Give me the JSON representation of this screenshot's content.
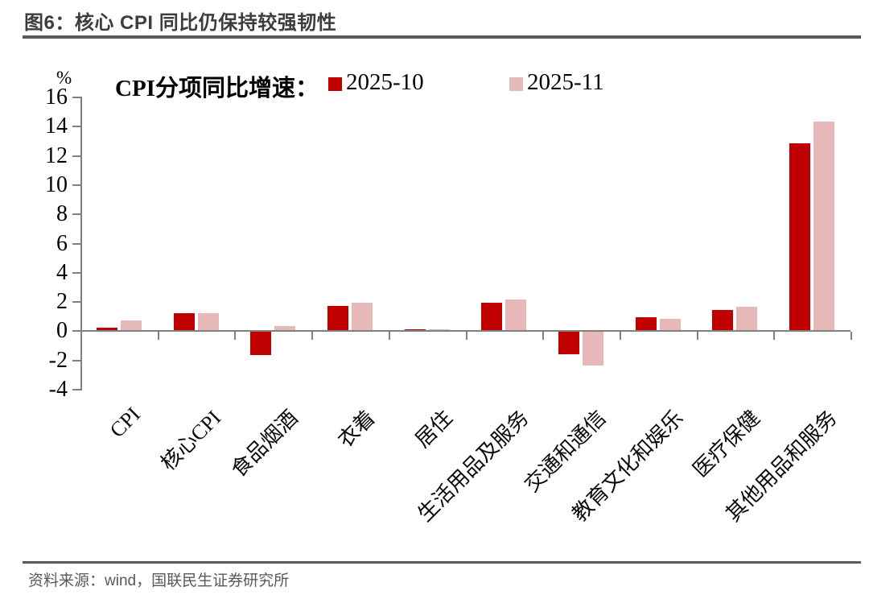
{
  "header": {
    "title": "图6：核心 CPI 同比仍保持较强韧性"
  },
  "footer": {
    "source": "资料来源：wind，国联民生证券研究所"
  },
  "chart_data": {
    "type": "bar",
    "legend_title": "CPI分项同比增速：",
    "unit": "%",
    "legend_position": "top",
    "grid": false,
    "axis_color": "#808080",
    "categories": [
      "CPI",
      "核心CPI",
      "食品烟酒",
      "衣着",
      "居住",
      "生活用品及服务",
      "交通和通信",
      "教育文化和娱乐",
      "医疗保健",
      "其他用品和服务"
    ],
    "series": [
      {
        "name": "2025-10",
        "color": "#C00000",
        "values": [
          0.2,
          1.2,
          -1.6,
          1.7,
          0.1,
          1.9,
          -1.5,
          0.9,
          1.4,
          12.8
        ]
      },
      {
        "name": "2025-11",
        "color": "#E6B8B7",
        "values": [
          0.7,
          1.2,
          0.3,
          1.9,
          0.1,
          2.1,
          -2.3,
          0.8,
          1.6,
          14.3
        ]
      }
    ],
    "ylim": [
      -4,
      16
    ],
    "ytick_step": 2
  }
}
